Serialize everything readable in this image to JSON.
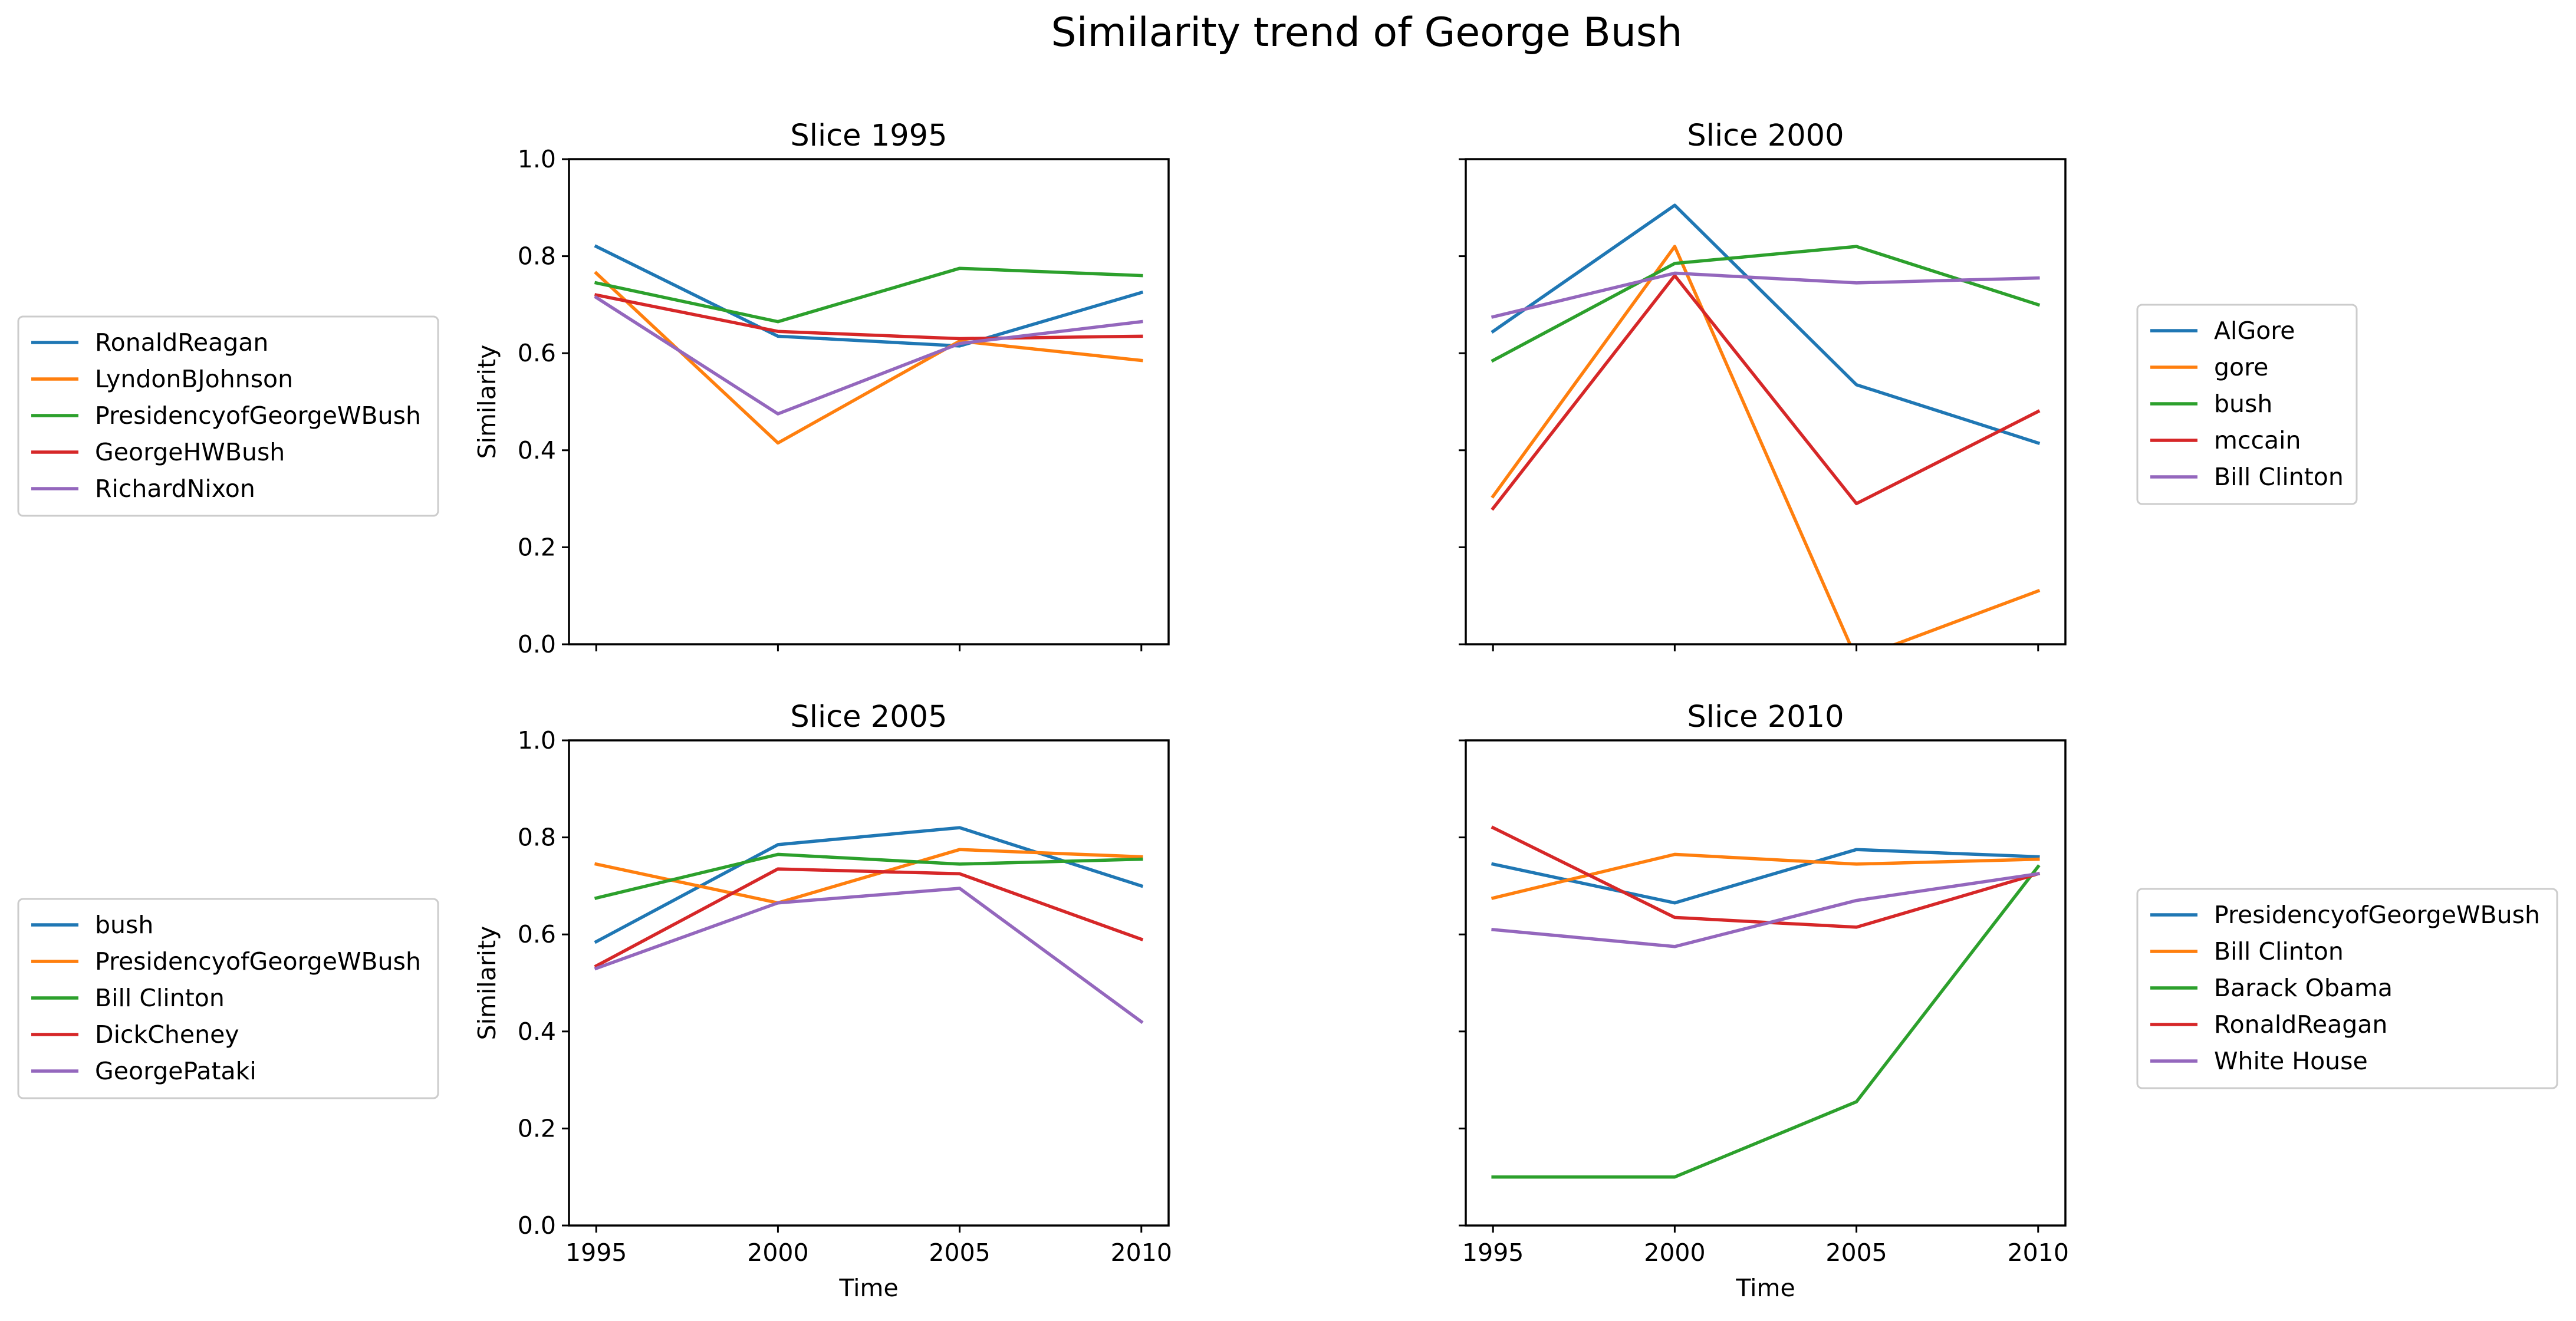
{
  "figure": {
    "title": "Similarity trend of George Bush"
  },
  "chart_data": [
    {
      "type": "line",
      "title": "Slice 1995",
      "xlabel": "",
      "ylabel": "Similarity",
      "x": [
        1995,
        2000,
        2005,
        2010
      ],
      "x_tick_labels": [],
      "y_ticks": [
        0.0,
        0.2,
        0.4,
        0.6,
        0.8,
        1.0
      ],
      "y_tick_labels": [
        "0.0",
        "0.2",
        "0.4",
        "0.6",
        "0.8",
        "1.0"
      ],
      "ylim": [
        0,
        1
      ],
      "legend_position": "left",
      "series": [
        {
          "name": "RonaldReagan",
          "color": "#1f77b4",
          "values": [
            0.82,
            0.635,
            0.615,
            0.725
          ]
        },
        {
          "name": "LyndonBJohnson",
          "color": "#ff7f0e",
          "values": [
            0.765,
            0.415,
            0.625,
            0.585
          ]
        },
        {
          "name": "PresidencyofGeorgeWBush",
          "color": "#2ca02c",
          "values": [
            0.745,
            0.665,
            0.775,
            0.76
          ]
        },
        {
          "name": "GeorgeHWBush",
          "color": "#d62728",
          "values": [
            0.72,
            0.645,
            0.63,
            0.635
          ]
        },
        {
          "name": "RichardNixon",
          "color": "#9467bd",
          "values": [
            0.715,
            0.475,
            0.62,
            0.665
          ]
        }
      ]
    },
    {
      "type": "line",
      "title": "Slice 2000",
      "xlabel": "",
      "ylabel": "",
      "x": [
        1995,
        2000,
        2005,
        2010
      ],
      "x_tick_labels": [],
      "y_ticks": [
        0.0,
        0.2,
        0.4,
        0.6,
        0.8,
        1.0
      ],
      "y_tick_labels": [],
      "ylim": [
        0,
        1
      ],
      "legend_position": "right",
      "series": [
        {
          "name": "AlGore",
          "color": "#1f77b4",
          "values": [
            0.645,
            0.905,
            0.535,
            0.415
          ]
        },
        {
          "name": "gore",
          "color": "#ff7f0e",
          "values": [
            0.305,
            0.82,
            -0.03,
            0.11
          ]
        },
        {
          "name": "bush",
          "color": "#2ca02c",
          "values": [
            0.585,
            0.785,
            0.82,
            0.7
          ]
        },
        {
          "name": "mccain",
          "color": "#d62728",
          "values": [
            0.28,
            0.76,
            0.29,
            0.48
          ]
        },
        {
          "name": "Bill Clinton",
          "color": "#9467bd",
          "values": [
            0.675,
            0.765,
            0.745,
            0.755
          ]
        }
      ]
    },
    {
      "type": "line",
      "title": "Slice 2005",
      "xlabel": "Time",
      "ylabel": "Similarity",
      "x": [
        1995,
        2000,
        2005,
        2010
      ],
      "x_tick_labels": [
        "1995",
        "2000",
        "2005",
        "2010"
      ],
      "y_ticks": [
        0.0,
        0.2,
        0.4,
        0.6,
        0.8,
        1.0
      ],
      "y_tick_labels": [
        "0.0",
        "0.2",
        "0.4",
        "0.6",
        "0.8",
        "1.0"
      ],
      "ylim": [
        0,
        1
      ],
      "legend_position": "left",
      "series": [
        {
          "name": "bush",
          "color": "#1f77b4",
          "values": [
            0.585,
            0.785,
            0.82,
            0.7
          ]
        },
        {
          "name": "PresidencyofGeorgeWBush",
          "color": "#ff7f0e",
          "values": [
            0.745,
            0.665,
            0.775,
            0.76
          ]
        },
        {
          "name": "Bill Clinton",
          "color": "#2ca02c",
          "values": [
            0.675,
            0.765,
            0.745,
            0.755
          ]
        },
        {
          "name": "DickCheney",
          "color": "#d62728",
          "values": [
            0.535,
            0.735,
            0.725,
            0.59
          ]
        },
        {
          "name": "GeorgePataki",
          "color": "#9467bd",
          "values": [
            0.53,
            0.665,
            0.695,
            0.42
          ]
        }
      ]
    },
    {
      "type": "line",
      "title": "Slice 2010",
      "xlabel": "Time",
      "ylabel": "",
      "x": [
        1995,
        2000,
        2005,
        2010
      ],
      "x_tick_labels": [
        "1995",
        "2000",
        "2005",
        "2010"
      ],
      "y_ticks": [
        0.0,
        0.2,
        0.4,
        0.6,
        0.8,
        1.0
      ],
      "y_tick_labels": [],
      "ylim": [
        0,
        1
      ],
      "legend_position": "right",
      "series": [
        {
          "name": "PresidencyofGeorgeWBush",
          "color": "#1f77b4",
          "values": [
            0.745,
            0.665,
            0.775,
            0.76
          ]
        },
        {
          "name": "Bill Clinton",
          "color": "#ff7f0e",
          "values": [
            0.675,
            0.765,
            0.745,
            0.755
          ]
        },
        {
          "name": "Barack Obama",
          "color": "#2ca02c",
          "values": [
            0.1,
            0.1,
            0.255,
            0.74
          ]
        },
        {
          "name": "RonaldReagan",
          "color": "#d62728",
          "values": [
            0.82,
            0.635,
            0.615,
            0.725
          ]
        },
        {
          "name": "White House",
          "color": "#9467bd",
          "values": [
            0.61,
            0.575,
            0.67,
            0.725
          ]
        }
      ]
    }
  ]
}
